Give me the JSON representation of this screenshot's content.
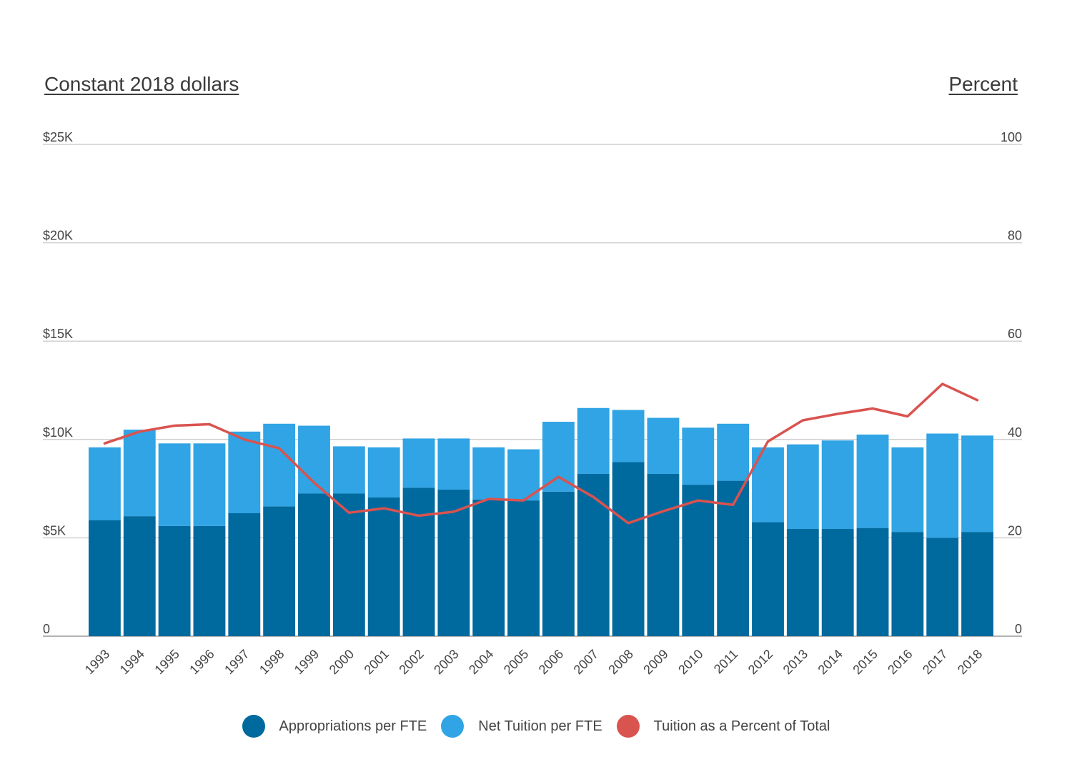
{
  "chart_data": {
    "type": "bar",
    "stacked": true,
    "categories": [
      "1993",
      "1994",
      "1995",
      "1996",
      "1997",
      "1998",
      "1999",
      "2000",
      "2001",
      "2002",
      "2003",
      "2004",
      "2005",
      "2006",
      "2007",
      "2008",
      "2009",
      "2010",
      "2011",
      "2012",
      "2013",
      "2014",
      "2015",
      "2016",
      "2017",
      "2018"
    ],
    "left_axis": {
      "title": "Constant 2018 dollars",
      "ticks": [
        0,
        5000,
        10000,
        15000,
        20000,
        25000
      ],
      "tick_labels": [
        "0",
        "$5K",
        "$10K",
        "$15K",
        "$20K",
        "$25K"
      ],
      "range": [
        0,
        25000
      ]
    },
    "right_axis": {
      "title": "Percent",
      "ticks": [
        0,
        20,
        40,
        60,
        80,
        100
      ],
      "tick_labels": [
        "0",
        "20",
        "40",
        "60",
        "80",
        "100"
      ],
      "range": [
        0,
        100
      ]
    },
    "series": [
      {
        "name": "Appropriations per FTE",
        "type": "bar",
        "axis": "left",
        "color": "#00699e",
        "values": [
          5900,
          6100,
          5600,
          5600,
          6250,
          6600,
          7250,
          7250,
          7050,
          7550,
          7450,
          6950,
          6900,
          7350,
          8250,
          8850,
          8250,
          7700,
          7900,
          5800,
          5450,
          5450,
          5500,
          5300,
          5000,
          5300
        ]
      },
      {
        "name": "Net Tuition per FTE",
        "type": "bar",
        "axis": "left",
        "color": "#30a4e4",
        "values": [
          3700,
          4400,
          4200,
          4200,
          4150,
          4200,
          3450,
          2400,
          2550,
          2500,
          2600,
          2650,
          2600,
          3550,
          3350,
          2650,
          2850,
          2900,
          2900,
          3800,
          4300,
          4500,
          4750,
          4300,
          5300,
          4900
        ]
      },
      {
        "name": "Tuition as a Percent of Total",
        "type": "line",
        "axis": "right",
        "color": "#d9534f",
        "values": [
          39.2,
          41.6,
          42.8,
          43.1,
          40.0,
          38.2,
          31.2,
          25.1,
          26.0,
          24.5,
          25.3,
          27.9,
          27.6,
          32.4,
          28.3,
          23.0,
          25.4,
          27.6,
          26.7,
          39.6,
          43.9,
          45.2,
          46.3,
          44.7,
          51.3,
          48.0
        ]
      }
    ],
    "grid": true,
    "legend": "bottom-center"
  }
}
